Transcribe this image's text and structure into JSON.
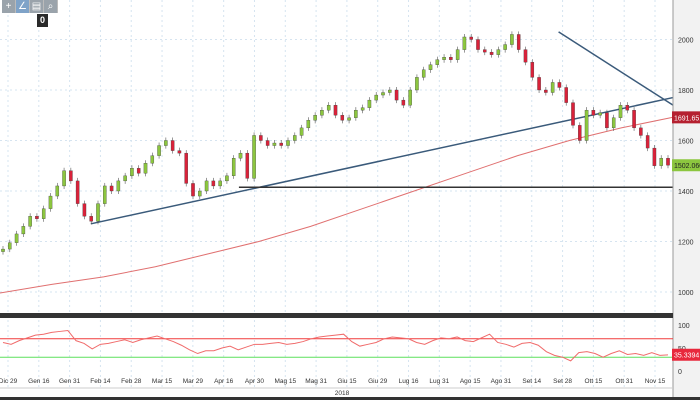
{
  "toolbar": {
    "items": [
      "crosshair-icon",
      "draw-icon",
      "save-icon",
      "zoom-icon"
    ],
    "glyphs": [
      "+",
      "∠",
      "▤",
      "⌕"
    ],
    "badge": "0"
  },
  "chart_data": [
    {
      "type": "candlestick",
      "title": "",
      "ylim": [
        950,
        2080
      ],
      "yticks": [
        1000,
        1200,
        1400,
        1600,
        1800,
        2000
      ],
      "closes": [
        1170,
        1195,
        1230,
        1260,
        1300,
        1290,
        1330,
        1380,
        1420,
        1480,
        1440,
        1350,
        1300,
        1280,
        1350,
        1420,
        1400,
        1440,
        1460,
        1490,
        1470,
        1510,
        1540,
        1580,
        1600,
        1560,
        1550,
        1430,
        1380,
        1400,
        1440,
        1420,
        1440,
        1460,
        1530,
        1550,
        1450,
        1620,
        1600,
        1580,
        1590,
        1580,
        1600,
        1620,
        1650,
        1680,
        1700,
        1720,
        1740,
        1700,
        1680,
        1690,
        1720,
        1730,
        1760,
        1780,
        1790,
        1800,
        1760,
        1740,
        1800,
        1850,
        1880,
        1900,
        1920,
        1930,
        1920,
        1960,
        2010,
        2000,
        1960,
        1950,
        1940,
        1960,
        1980,
        2020,
        1960,
        1910,
        1850,
        1800,
        1790,
        1830,
        1810,
        1750,
        1660,
        1600,
        1720,
        1700,
        1710,
        1650,
        1690,
        1740,
        1720,
        1650,
        1620,
        1570,
        1500,
        1530,
        1502
      ],
      "last_price": "1502.0601",
      "moving_average": {
        "values": [
          996,
          1030,
          1060,
          1100,
          1150,
          1200,
          1260,
          1330,
          1400,
          1470,
          1540,
          1600,
          1650,
          1692
        ],
        "last": "1691.6515"
      },
      "trendlines": [
        {
          "from": [
            0.135,
            1270
          ],
          "to": [
            1,
            1770
          ]
        },
        {
          "from": [
            0.83,
            2030
          ],
          "to": [
            1,
            1740
          ]
        },
        {
          "from": [
            0.355,
            1415
          ],
          "to": [
            1,
            1415
          ]
        }
      ],
      "colors": {
        "up": "#8cc63f",
        "down": "#d9223a",
        "ma": "#e07070",
        "trend": "#3a5a7a",
        "support": "#333333"
      }
    },
    {
      "type": "line",
      "name": "RSI",
      "ylim": [
        0,
        100
      ],
      "yticks": [
        0,
        50,
        100
      ],
      "levels": [
        70,
        30
      ],
      "values": [
        62,
        58,
        66,
        72,
        78,
        80,
        84,
        86,
        88,
        66,
        60,
        48,
        58,
        60,
        64,
        68,
        62,
        68,
        72,
        76,
        70,
        64,
        56,
        46,
        38,
        44,
        44,
        50,
        54,
        46,
        52,
        58,
        58,
        60,
        62,
        58,
        60,
        64,
        70,
        74,
        76,
        78,
        80,
        64,
        54,
        58,
        62,
        70,
        74,
        72,
        70,
        62,
        58,
        66,
        72,
        70,
        74,
        66,
        64,
        72,
        80,
        62,
        58,
        52,
        60,
        62,
        56,
        42,
        34,
        30,
        22,
        40,
        42,
        38,
        30,
        38,
        44,
        36,
        38,
        34,
        40,
        34,
        35
      ],
      "last": "35.3394",
      "colors": {
        "line": "#f06b6b",
        "upper": "#f03c3c",
        "lower": "#5de05d"
      }
    }
  ],
  "xaxis": {
    "labels": [
      "Dic 29",
      "Gen 16",
      "Gen 31",
      "Feb 14",
      "Feb 28",
      "Mar 15",
      "Mar 29",
      "Apr 16",
      "Apr 30",
      "Mag 15",
      "Mag 31",
      "Giu 15",
      "Giu 29",
      "Lug 16",
      "Lug 31",
      "Ago 15",
      "Ago 31",
      "Set 14",
      "Set 28",
      "Ott 15",
      "Ott 31",
      "Nov 15"
    ],
    "year": "2018"
  }
}
